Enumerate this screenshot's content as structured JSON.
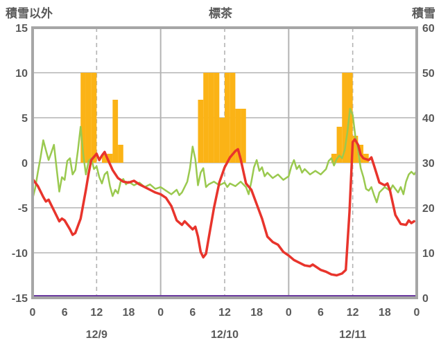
{
  "header": {
    "left_axis_title": "積雪以外",
    "chart_title": "標茶",
    "right_axis_title": "積雪"
  },
  "colors": {
    "red_line": "#e8342c",
    "green_line": "#9ac94f",
    "sunshine_bar": "#fbb316",
    "snow_line": "#6a3aa0",
    "grid": "#b3b3b3",
    "border": "#a6a6a6",
    "text": "#595959",
    "background": "#ffffff"
  },
  "chart_data": {
    "type": "composite-line-bar",
    "title": "標茶",
    "left_axis": {
      "title": "積雪以外",
      "min": -15,
      "max": 15,
      "ticks": [
        15,
        10,
        5,
        0,
        -5,
        -10,
        -15
      ],
      "gridlines": [
        10,
        5,
        0,
        -5,
        -10
      ]
    },
    "right_axis": {
      "title": "積雪",
      "min": 0,
      "max": 60,
      "ticks": [
        60,
        50,
        40,
        30,
        20,
        10,
        0
      ]
    },
    "x_axis": {
      "min": 0,
      "max": 72,
      "tick_hours": [
        0,
        6,
        12,
        18,
        24,
        30,
        36,
        42,
        48,
        54,
        60,
        66,
        72
      ],
      "tick_labels": [
        "0",
        "6",
        "12",
        "18",
        "0",
        "6",
        "12",
        "18",
        "0",
        "6",
        "12",
        "18",
        "0"
      ],
      "solid_lines": [
        24,
        48
      ],
      "dashed_lines": [
        12,
        36,
        60
      ],
      "day_labels": [
        {
          "label": "12/9",
          "hour": 12
        },
        {
          "label": "12/10",
          "hour": 36
        },
        {
          "label": "12/11",
          "hour": 60
        }
      ]
    },
    "bars": {
      "id": "sunshine",
      "axis": "left",
      "color": "#fbb316",
      "points": [
        [
          9,
          10
        ],
        [
          10,
          10
        ],
        [
          11,
          10
        ],
        [
          13,
          1
        ],
        [
          14,
          1
        ],
        [
          15,
          7
        ],
        [
          16,
          2
        ],
        [
          31,
          7
        ],
        [
          32,
          10
        ],
        [
          33,
          10
        ],
        [
          34,
          10
        ],
        [
          35,
          5
        ],
        [
          36,
          10
        ],
        [
          37,
          10
        ],
        [
          38,
          6
        ],
        [
          39,
          6
        ],
        [
          56,
          1
        ],
        [
          57,
          4
        ],
        [
          58,
          10
        ],
        [
          59,
          10
        ],
        [
          60,
          3
        ],
        [
          61,
          2
        ],
        [
          62,
          1
        ]
      ]
    },
    "lines": [
      {
        "id": "green",
        "axis": "left",
        "color": "#9ac94f",
        "width": 2.5,
        "points": [
          [
            0,
            -4.0
          ],
          [
            0.5,
            -2.8
          ],
          [
            1,
            -1.0
          ],
          [
            1.5,
            0.6
          ],
          [
            2,
            2.5
          ],
          [
            2.5,
            1.4
          ],
          [
            3,
            0.3
          ],
          [
            3.5,
            1.1
          ],
          [
            4,
            2.0
          ],
          [
            4.5,
            -0.6
          ],
          [
            5,
            -3.2
          ],
          [
            5.5,
            -1.6
          ],
          [
            6,
            -1.9
          ],
          [
            6.5,
            0.2
          ],
          [
            7,
            0.5
          ],
          [
            7.5,
            -1.3
          ],
          [
            8,
            -0.8
          ],
          [
            8.5,
            1.4
          ],
          [
            9,
            4.0
          ],
          [
            9.5,
            0.9
          ],
          [
            10,
            -1.3
          ],
          [
            10.5,
            0.2
          ],
          [
            11,
            0.5
          ],
          [
            11.5,
            -0.7
          ],
          [
            12,
            -0.4
          ],
          [
            12.5,
            -1.6
          ],
          [
            13,
            -2.3
          ],
          [
            13.5,
            -1.3
          ],
          [
            14,
            -1.0
          ],
          [
            14.5,
            -2.6
          ],
          [
            15,
            -3.7
          ],
          [
            15.5,
            -3.0
          ],
          [
            16,
            -3.4
          ],
          [
            16.5,
            -2.1
          ],
          [
            17,
            -1.8
          ],
          [
            17.5,
            -2.4
          ],
          [
            18,
            -2.1
          ],
          [
            19,
            -2.5
          ],
          [
            20,
            -2.2
          ],
          [
            21,
            -2.7
          ],
          [
            22,
            -2.4
          ],
          [
            23,
            -2.9
          ],
          [
            24,
            -2.7
          ],
          [
            25,
            -3.1
          ],
          [
            26,
            -3.5
          ],
          [
            27,
            -3.0
          ],
          [
            27.5,
            -3.6
          ],
          [
            28,
            -3.3
          ],
          [
            29,
            -2.1
          ],
          [
            29.5,
            -0.6
          ],
          [
            30,
            1.8
          ],
          [
            30.5,
            0.4
          ],
          [
            31,
            -2.5
          ],
          [
            31.5,
            -1.1
          ],
          [
            32,
            -0.6
          ],
          [
            32.5,
            -2.7
          ],
          [
            33,
            -2.4
          ],
          [
            34,
            -2.1
          ],
          [
            35,
            -2.5
          ],
          [
            36,
            -2.2
          ],
          [
            36.5,
            -2.7
          ],
          [
            37,
            -2.3
          ],
          [
            38,
            -2.6
          ],
          [
            39,
            -2.1
          ],
          [
            40,
            -2.7
          ],
          [
            40.5,
            -3.5
          ],
          [
            41,
            -2.1
          ],
          [
            41.5,
            -0.5
          ],
          [
            42,
            0.3
          ],
          [
            42.5,
            -0.9
          ],
          [
            43,
            -0.5
          ],
          [
            43.5,
            -1.5
          ],
          [
            44,
            -1.1
          ],
          [
            45,
            -1.7
          ],
          [
            46,
            -1.3
          ],
          [
            47,
            -1.9
          ],
          [
            48,
            -1.5
          ],
          [
            48.5,
            -0.4
          ],
          [
            49,
            0.3
          ],
          [
            49.5,
            -0.7
          ],
          [
            50,
            -0.3
          ],
          [
            50.5,
            -1.1
          ],
          [
            51,
            -0.7
          ],
          [
            52,
            -1.3
          ],
          [
            53,
            -0.9
          ],
          [
            54,
            -1.3
          ],
          [
            55,
            -0.7
          ],
          [
            55.5,
            0.2
          ],
          [
            56,
            0.5
          ],
          [
            56.5,
            -0.3
          ],
          [
            57,
            0.4
          ],
          [
            57.5,
            0.8
          ],
          [
            58,
            0.5
          ],
          [
            58.5,
            1.4
          ],
          [
            59,
            3.4
          ],
          [
            59.5,
            6.0
          ],
          [
            60,
            5.3
          ],
          [
            60.5,
            2.9
          ],
          [
            61,
            1.4
          ],
          [
            61.5,
            -0.6
          ],
          [
            62,
            -1.6
          ],
          [
            62.5,
            -2.9
          ],
          [
            63,
            -3.1
          ],
          [
            63.5,
            -2.7
          ],
          [
            64,
            -3.6
          ],
          [
            64.5,
            -4.4
          ],
          [
            65,
            -3.3
          ],
          [
            66,
            -2.7
          ],
          [
            67,
            -3.1
          ],
          [
            67.5,
            -2.5
          ],
          [
            68,
            -2.9
          ],
          [
            68.5,
            -3.3
          ],
          [
            69,
            -2.7
          ],
          [
            69.5,
            -3.5
          ],
          [
            70,
            -2.1
          ],
          [
            70.5,
            -1.3
          ],
          [
            71,
            -1.0
          ],
          [
            71.5,
            -1.3
          ],
          [
            72,
            -0.9
          ]
        ]
      },
      {
        "id": "red",
        "axis": "left",
        "color": "#e8342c",
        "width": 3.5,
        "points": [
          [
            0,
            -1.8
          ],
          [
            1,
            -2.6
          ],
          [
            2,
            -3.8
          ],
          [
            2.5,
            -4.3
          ],
          [
            3,
            -4.1
          ],
          [
            4,
            -5.3
          ],
          [
            5,
            -6.5
          ],
          [
            5.5,
            -6.2
          ],
          [
            6,
            -6.4
          ],
          [
            7,
            -7.4
          ],
          [
            7.5,
            -8.0
          ],
          [
            8,
            -7.8
          ],
          [
            9,
            -6.2
          ],
          [
            10,
            -3.0
          ],
          [
            10.5,
            -1.2
          ],
          [
            11,
            0.3
          ],
          [
            12,
            1.0
          ],
          [
            12.5,
            0.3
          ],
          [
            13,
            0.8
          ],
          [
            13.5,
            1.2
          ],
          [
            14,
            0.5
          ],
          [
            15,
            -0.8
          ],
          [
            16,
            -1.7
          ],
          [
            17,
            -2.1
          ],
          [
            18,
            -2.2
          ],
          [
            19,
            -2.0
          ],
          [
            20,
            -2.4
          ],
          [
            21,
            -2.7
          ],
          [
            22,
            -3.0
          ],
          [
            23,
            -3.3
          ],
          [
            24,
            -3.5
          ],
          [
            25,
            -3.9
          ],
          [
            26,
            -4.8
          ],
          [
            27,
            -6.4
          ],
          [
            28,
            -6.9
          ],
          [
            28.5,
            -6.5
          ],
          [
            29,
            -6.8
          ],
          [
            30,
            -7.4
          ],
          [
            30.5,
            -7.1
          ],
          [
            31,
            -8.2
          ],
          [
            31.5,
            -9.9
          ],
          [
            32,
            -10.5
          ],
          [
            32.5,
            -10.1
          ],
          [
            33,
            -8.4
          ],
          [
            34,
            -5.0
          ],
          [
            35,
            -2.2
          ],
          [
            36,
            -0.5
          ],
          [
            37,
            0.6
          ],
          [
            38,
            1.3
          ],
          [
            38.5,
            1.5
          ],
          [
            39,
            0.4
          ],
          [
            40,
            -2.3
          ],
          [
            41,
            -3.0
          ],
          [
            42,
            -4.6
          ],
          [
            43,
            -6.2
          ],
          [
            44,
            -8.2
          ],
          [
            45,
            -8.8
          ],
          [
            46,
            -9.1
          ],
          [
            47,
            -9.9
          ],
          [
            48,
            -10.3
          ],
          [
            49,
            -10.8
          ],
          [
            50,
            -11.1
          ],
          [
            51,
            -11.4
          ],
          [
            52,
            -11.5
          ],
          [
            52.5,
            -11.3
          ],
          [
            53,
            -11.5
          ],
          [
            54,
            -11.9
          ],
          [
            55,
            -12.1
          ],
          [
            56,
            -12.4
          ],
          [
            57,
            -12.5
          ],
          [
            58,
            -12.3
          ],
          [
            58.7,
            -11.9
          ],
          [
            59.4,
            -5.5
          ],
          [
            60,
            2.3
          ],
          [
            60.4,
            2.6
          ],
          [
            61,
            2.0
          ],
          [
            61.5,
            0.9
          ],
          [
            62,
            0.5
          ],
          [
            63,
            0.3
          ],
          [
            63.5,
            0.6
          ],
          [
            64,
            -0.3
          ],
          [
            65,
            -2.2
          ],
          [
            66,
            -2.5
          ],
          [
            66.5,
            -2.3
          ],
          [
            67,
            -3.1
          ],
          [
            68,
            -5.8
          ],
          [
            69,
            -6.8
          ],
          [
            70,
            -6.9
          ],
          [
            70.5,
            -6.4
          ],
          [
            71,
            -6.7
          ],
          [
            71.5,
            -6.5
          ]
        ]
      },
      {
        "id": "purple",
        "axis": "right",
        "color": "#6a3aa0",
        "width": 3,
        "points": [
          [
            0,
            0
          ],
          [
            72,
            0
          ]
        ]
      }
    ]
  }
}
